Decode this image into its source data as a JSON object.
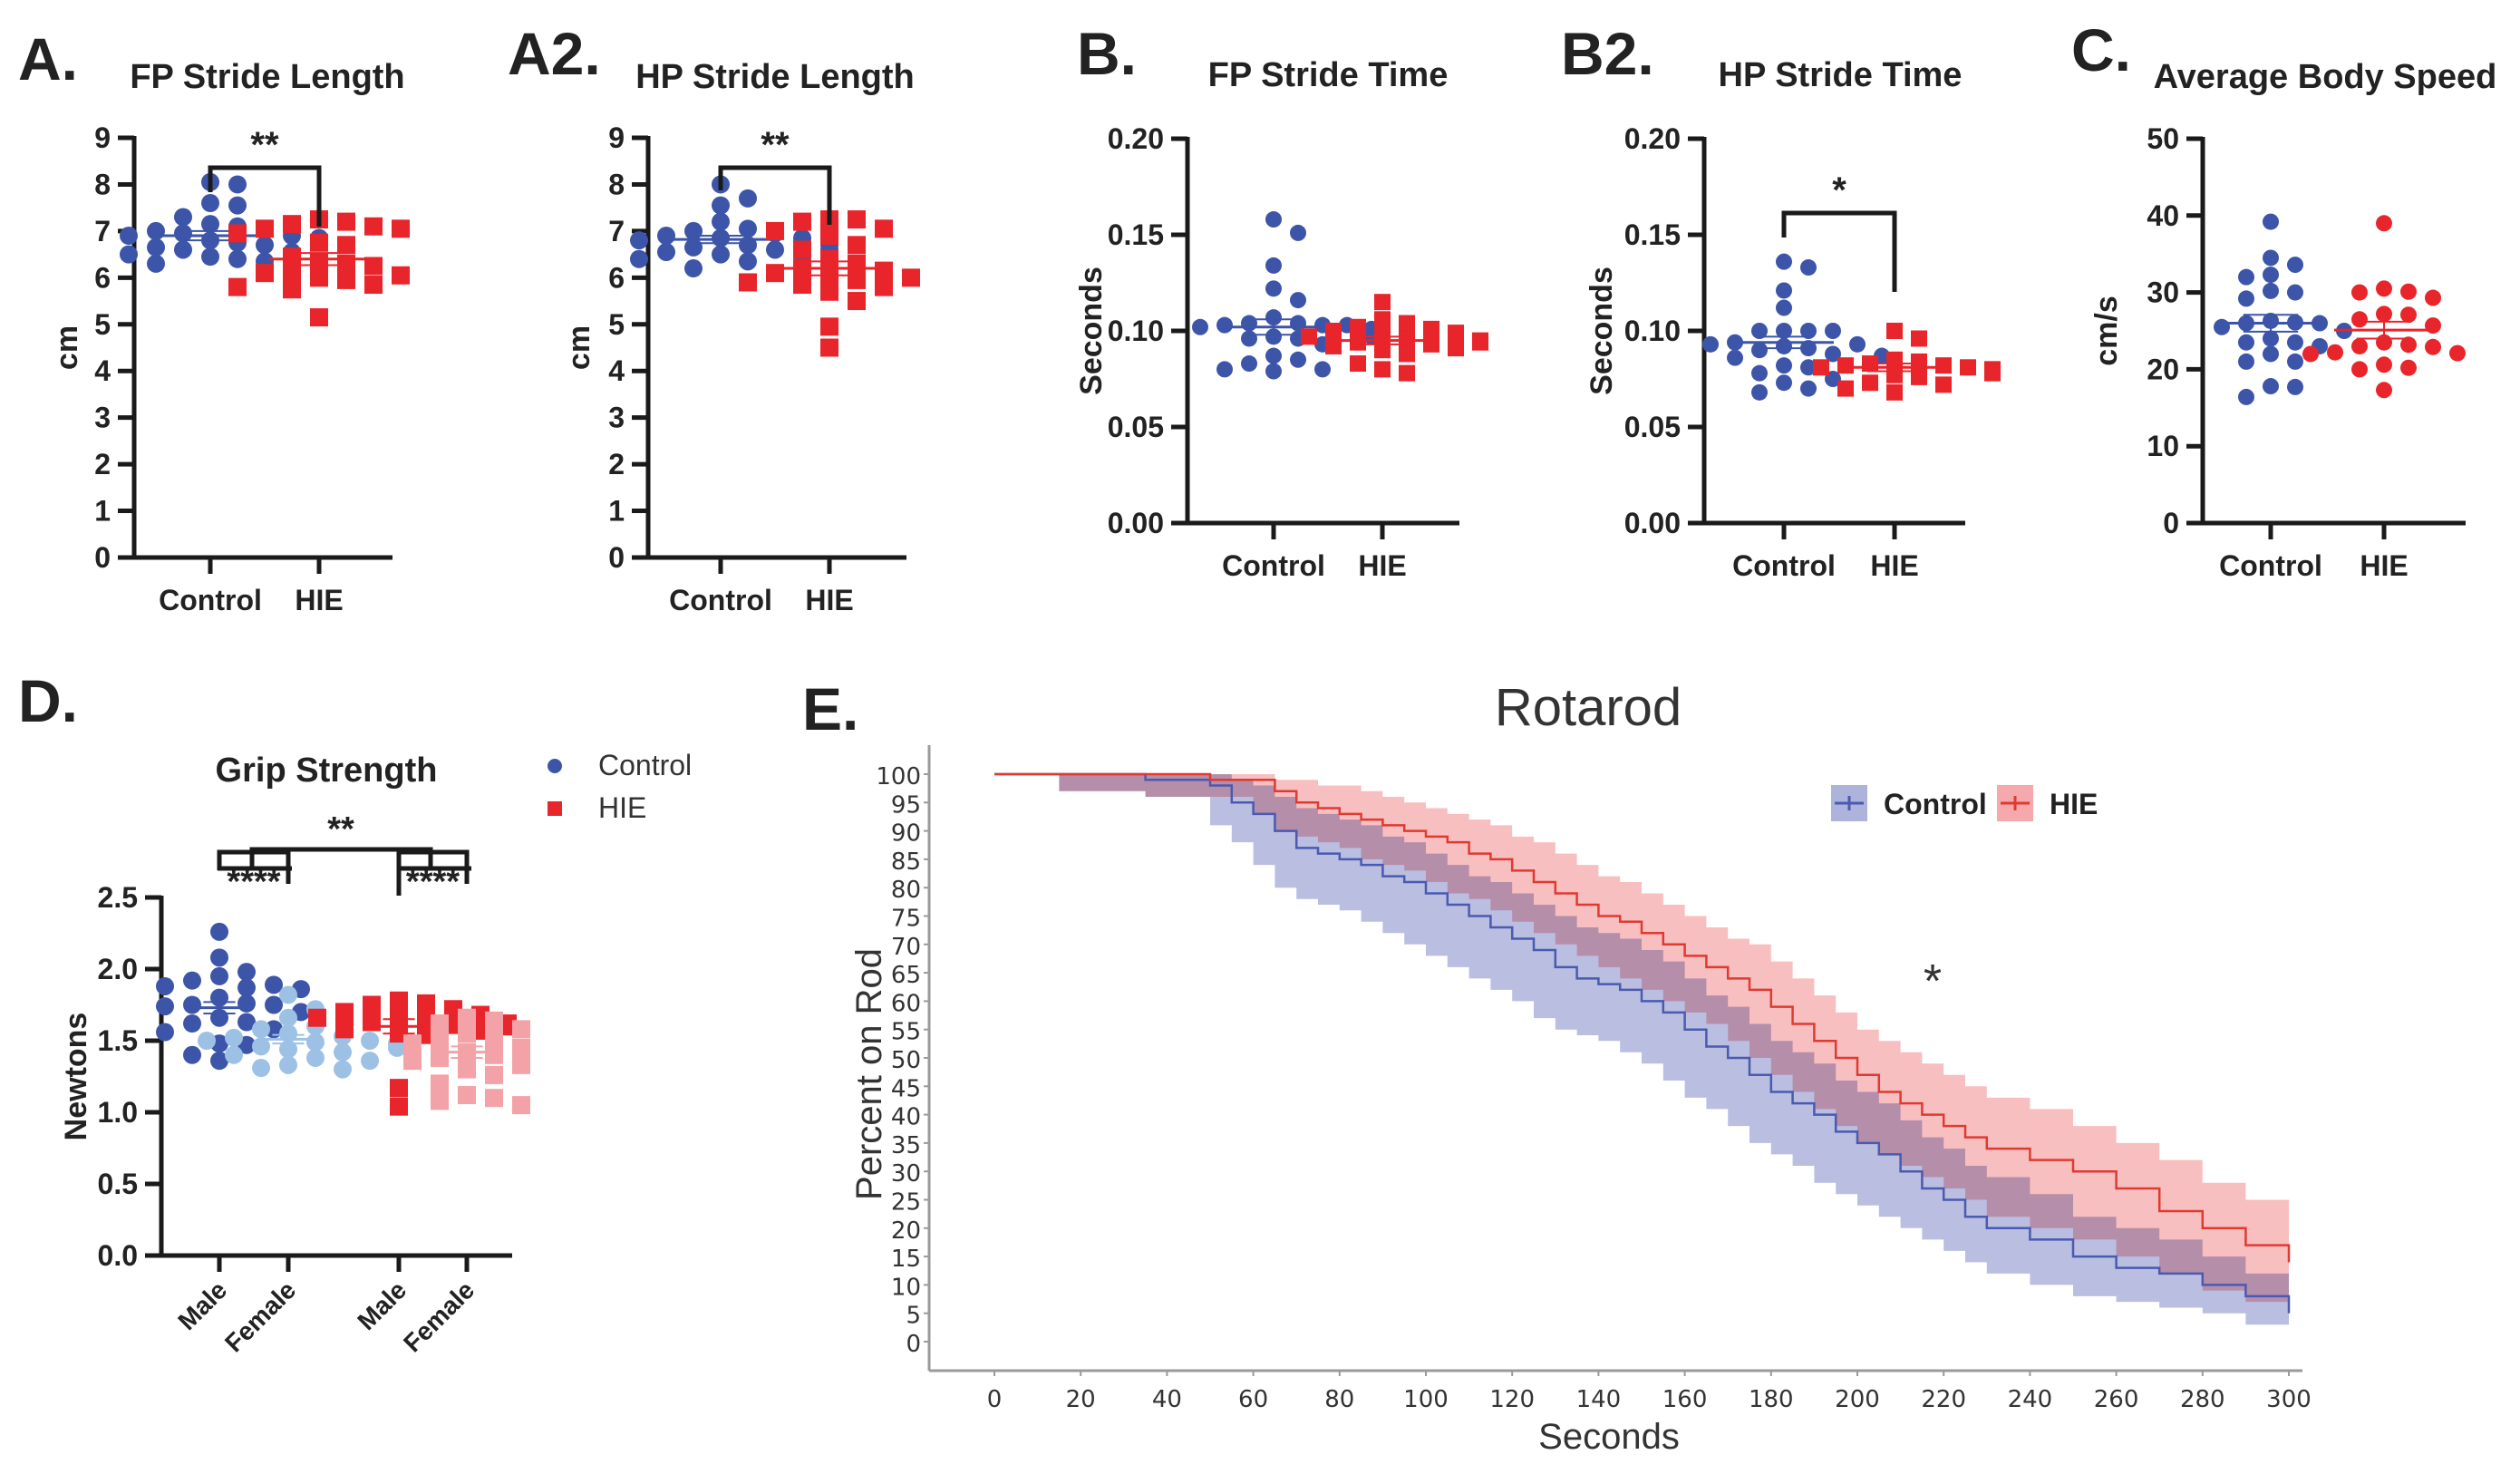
{
  "colors": {
    "control": "#3d55a8",
    "hie": "#e8252b",
    "control_female": "#9dc1e5",
    "hie_female": "#f3a3a7",
    "axis": "#1a1a1a",
    "km_control_line": "#4a5ab0",
    "km_hie_line": "#e03a30",
    "km_control_band": "#aeb3dc",
    "km_hie_band": "#f5a9ac",
    "km_overlap_band": "#cc7ab5"
  },
  "chart_data": [
    {
      "id": "A",
      "panel_label": "A.",
      "type": "scatter",
      "title": "FP Stride Length",
      "ylabel": "cm",
      "ylim": [
        0,
        9
      ],
      "yticks": [
        "0",
        "1",
        "2",
        "3",
        "4",
        "5",
        "6",
        "7",
        "8",
        "9"
      ],
      "categories": [
        "Control",
        "HIE"
      ],
      "significance": {
        "label": "**",
        "between": [
          "Control",
          "HIE"
        ]
      },
      "series": [
        {
          "name": "Control",
          "marker": "circle",
          "mean": 6.9,
          "sem": 0.1,
          "values": [
            8.05,
            8.0,
            7.6,
            7.55,
            7.3,
            7.15,
            7.1,
            7.05,
            7.0,
            6.95,
            6.9,
            6.9,
            6.85,
            6.85,
            6.8,
            6.75,
            6.7,
            6.65,
            6.6,
            6.55,
            6.5,
            6.45,
            6.4,
            6.35,
            6.3,
            6.3
          ]
        },
        {
          "name": "HIE",
          "marker": "square",
          "mean": 6.4,
          "sem": 0.13,
          "values": [
            7.25,
            7.2,
            7.15,
            7.1,
            7.05,
            7.05,
            6.95,
            6.75,
            6.7,
            6.45,
            6.35,
            6.3,
            6.25,
            6.1,
            6.1,
            6.05,
            6.0,
            5.95,
            5.85,
            5.8,
            5.75,
            5.15
          ]
        }
      ]
    },
    {
      "id": "A2",
      "panel_label": "A2.",
      "type": "scatter",
      "title": "HP Stride Length",
      "ylabel": "cm",
      "ylim": [
        0,
        9
      ],
      "yticks": [
        "0",
        "1",
        "2",
        "3",
        "4",
        "5",
        "6",
        "7",
        "8",
        "9"
      ],
      "categories": [
        "Control",
        "HIE"
      ],
      "significance": {
        "label": "**",
        "between": [
          "Control",
          "HIE"
        ]
      },
      "series": [
        {
          "name": "Control",
          "marker": "circle",
          "mean": 6.82,
          "sem": 0.08,
          "values": [
            8.0,
            7.7,
            7.55,
            7.2,
            7.05,
            7.0,
            6.95,
            6.9,
            6.85,
            6.85,
            6.8,
            6.8,
            6.75,
            6.7,
            6.7,
            6.65,
            6.6,
            6.6,
            6.55,
            6.5,
            6.45,
            6.4,
            6.35,
            6.2
          ]
        },
        {
          "name": "HIE",
          "marker": "square",
          "mean": 6.2,
          "sem": 0.15,
          "values": [
            7.25,
            7.25,
            7.2,
            7.05,
            7.0,
            6.9,
            6.7,
            6.6,
            6.4,
            6.3,
            6.2,
            6.15,
            6.1,
            6.05,
            6.0,
            5.95,
            5.9,
            5.85,
            5.8,
            5.7,
            5.5,
            4.95,
            4.5
          ]
        }
      ]
    },
    {
      "id": "B",
      "panel_label": "B.",
      "type": "scatter",
      "title": "FP Stride Time",
      "ylabel": "Seconds",
      "ylim": [
        0,
        0.2
      ],
      "yticks": [
        "0.00",
        "0.05",
        "0.10",
        "0.15",
        "0.20"
      ],
      "categories": [
        "Control",
        "HIE"
      ],
      "significance": null,
      "series": [
        {
          "name": "Control",
          "marker": "circle",
          "mean": 0.102,
          "sem": 0.004,
          "values": [
            0.158,
            0.151,
            0.134,
            0.122,
            0.116,
            0.107,
            0.104,
            0.104,
            0.103,
            0.103,
            0.103,
            0.102,
            0.101,
            0.097,
            0.097,
            0.096,
            0.096,
            0.093,
            0.087,
            0.085,
            0.083,
            0.08,
            0.08,
            0.079
          ]
        },
        {
          "name": "HIE",
          "marker": "square",
          "mean": 0.095,
          "sem": 0.002,
          "values": [
            0.115,
            0.106,
            0.104,
            0.102,
            0.101,
            0.1,
            0.099,
            0.098,
            0.097,
            0.096,
            0.095,
            0.094,
            0.094,
            0.093,
            0.092,
            0.091,
            0.09,
            0.088,
            0.083,
            0.08,
            0.078
          ]
        }
      ]
    },
    {
      "id": "B2",
      "panel_label": "B2.",
      "type": "scatter",
      "title": "HP Stride Time",
      "ylabel": "Seconds",
      "ylim": [
        0,
        0.2
      ],
      "yticks": [
        "0.00",
        "0.05",
        "0.10",
        "0.15",
        "0.20"
      ],
      "categories": [
        "Control",
        "HIE"
      ],
      "significance": {
        "label": "*",
        "between": [
          "Control",
          "HIE"
        ]
      },
      "series": [
        {
          "name": "Control",
          "marker": "circle",
          "mean": 0.094,
          "sem": 0.003,
          "values": [
            0.136,
            0.133,
            0.121,
            0.112,
            0.1,
            0.1,
            0.1,
            0.1,
            0.094,
            0.093,
            0.093,
            0.092,
            0.091,
            0.09,
            0.088,
            0.087,
            0.086,
            0.082,
            0.081,
            0.078,
            0.075,
            0.073,
            0.07,
            0.068
          ]
        },
        {
          "name": "HIE",
          "marker": "square",
          "mean": 0.081,
          "sem": 0.002,
          "values": [
            0.1,
            0.096,
            0.085,
            0.084,
            0.083,
            0.082,
            0.082,
            0.081,
            0.081,
            0.08,
            0.08,
            0.079,
            0.079,
            0.078,
            0.077,
            0.076,
            0.073,
            0.072,
            0.07,
            0.068
          ]
        }
      ]
    },
    {
      "id": "C",
      "panel_label": "C.",
      "type": "scatter",
      "title": "Average Body Speed",
      "ylabel": "cm/s",
      "ylim": [
        0,
        50
      ],
      "yticks": [
        "0",
        "10",
        "20",
        "30",
        "40",
        "50"
      ],
      "categories": [
        "Control",
        "HIE"
      ],
      "significance": null,
      "series": [
        {
          "name": "Control",
          "marker": "circle",
          "mean": 26.0,
          "sem": 1.1,
          "values": [
            39.2,
            34.5,
            33.6,
            32.3,
            32.0,
            30.2,
            30.0,
            29.2,
            26.3,
            26.1,
            26.0,
            26.0,
            25.5,
            25.0,
            24.0,
            23.5,
            23.5,
            23.0,
            22.0,
            21.0,
            21.0,
            17.8,
            17.7,
            16.4
          ]
        },
        {
          "name": "HIE",
          "marker": "circle",
          "mean": 25.1,
          "sem": 1.1,
          "values": [
            39.0,
            30.5,
            30.1,
            30.0,
            29.3,
            27.2,
            27.1,
            26.5,
            25.7,
            23.5,
            23.2,
            23.0,
            22.9,
            22.2,
            22.1,
            22.0,
            20.6,
            20.2,
            20.0,
            17.3
          ]
        }
      ]
    },
    {
      "id": "D",
      "panel_label": "D.",
      "type": "scatter",
      "title": "Grip Strength",
      "ylabel": "Newtons",
      "ylim": [
        0,
        2.5
      ],
      "yticks": [
        "0.0",
        "0.5",
        "1.0",
        "1.5",
        "2.0",
        "2.5"
      ],
      "categories": [
        "Male",
        "Female",
        "Male",
        "Female"
      ],
      "legend": [
        {
          "label": "Control",
          "marker": "circle"
        },
        {
          "label": "HIE",
          "marker": "square"
        }
      ],
      "legend_position": "top-right",
      "significance": [
        {
          "label": "****",
          "between": [
            "Control Male",
            "Control Female"
          ]
        },
        {
          "label": "****",
          "between": [
            "HIE Male",
            "HIE Female"
          ]
        },
        {
          "label": "**",
          "between": [
            "Control",
            "HIE"
          ]
        }
      ],
      "series": [
        {
          "name": "Control Male",
          "group": "Control",
          "marker": "circle",
          "mean": 1.73,
          "sem": 0.04,
          "values": [
            2.26,
            2.08,
            1.98,
            1.95,
            1.92,
            1.89,
            1.88,
            1.87,
            1.86,
            1.8,
            1.76,
            1.75,
            1.75,
            1.74,
            1.7,
            1.66,
            1.63,
            1.62,
            1.58,
            1.56,
            1.48,
            1.47,
            1.4,
            1.36
          ]
        },
        {
          "name": "Control Female",
          "group": "Control",
          "marker": "circle",
          "mean": 1.51,
          "sem": 0.03,
          "values": [
            1.82,
            1.72,
            1.66,
            1.6,
            1.58,
            1.55,
            1.53,
            1.52,
            1.5,
            1.5,
            1.49,
            1.48,
            1.46,
            1.45,
            1.44,
            1.42,
            1.4,
            1.38,
            1.36,
            1.33,
            1.31,
            1.3
          ]
        },
        {
          "name": "HIE Male",
          "group": "HIE",
          "marker": "square",
          "mean": 1.6,
          "sem": 0.05,
          "values": [
            1.78,
            1.76,
            1.75,
            1.72,
            1.7,
            1.68,
            1.67,
            1.66,
            1.65,
            1.63,
            1.62,
            1.61,
            1.6,
            1.58,
            1.57,
            1.55,
            1.54,
            1.17,
            1.04
          ]
        },
        {
          "name": "HIE Female",
          "group": "HIE",
          "marker": "square",
          "mean": 1.42,
          "sem": 0.04,
          "values": [
            1.66,
            1.64,
            1.62,
            1.58,
            1.55,
            1.52,
            1.5,
            1.48,
            1.45,
            1.42,
            1.4,
            1.38,
            1.36,
            1.33,
            1.3,
            1.26,
            1.2,
            1.12,
            1.1,
            1.08,
            1.05
          ]
        }
      ]
    },
    {
      "id": "E",
      "panel_label": "E.",
      "type": "line",
      "title": "Rotarod",
      "xlabel": "Seconds",
      "ylabel": "Percent on Rod",
      "xlim": [
        0,
        300
      ],
      "ylim": [
        0,
        100
      ],
      "xticks": [
        "0",
        "20",
        "40",
        "60",
        "80",
        "100",
        "120",
        "140",
        "160",
        "180",
        "200",
        "220",
        "240",
        "260",
        "280",
        "300"
      ],
      "yticks": [
        "0",
        "5",
        "10",
        "15",
        "20",
        "25",
        "30",
        "35",
        "40",
        "45",
        "50",
        "55",
        "60",
        "65",
        "70",
        "75",
        "80",
        "85",
        "90",
        "95",
        "100"
      ],
      "legend": [
        {
          "label": "Control"
        },
        {
          "label": "HIE"
        }
      ],
      "legend_position": "top-right",
      "annotation": "*",
      "series": [
        {
          "name": "Control",
          "x": [
            0,
            15,
            35,
            50,
            55,
            60,
            65,
            70,
            75,
            80,
            85,
            90,
            95,
            100,
            105,
            110,
            115,
            120,
            125,
            130,
            135,
            140,
            145,
            150,
            155,
            160,
            165,
            170,
            175,
            180,
            185,
            190,
            195,
            200,
            205,
            210,
            215,
            220,
            225,
            230,
            240,
            250,
            260,
            270,
            280,
            290,
            300
          ],
          "y": [
            100,
            100,
            99,
            98,
            95,
            93,
            90,
            87,
            86,
            85,
            84,
            82,
            81,
            79,
            77,
            75,
            73,
            71,
            69,
            66,
            64,
            63,
            62,
            60,
            58,
            55,
            52,
            50,
            47,
            44,
            42,
            40,
            37,
            35,
            33,
            30,
            27,
            25,
            22,
            20,
            18,
            15,
            13,
            12,
            10,
            8,
            5
          ],
          "lower": [
            100,
            100,
            97,
            96,
            91,
            88,
            84,
            80,
            78,
            77,
            76,
            74,
            72,
            70,
            68,
            66,
            64,
            62,
            60,
            57,
            55,
            54,
            53,
            51,
            49,
            46,
            43,
            41,
            38,
            35,
            33,
            31,
            28,
            26,
            24,
            22,
            20,
            18,
            16,
            14,
            12,
            10,
            8,
            7,
            6,
            5,
            3
          ],
          "upper": [
            100,
            100,
            100,
            100,
            99,
            98,
            96,
            94,
            93,
            92,
            91,
            89,
            88,
            86,
            84,
            82,
            81,
            79,
            77,
            75,
            73,
            72,
            71,
            69,
            67,
            64,
            61,
            59,
            56,
            53,
            51,
            49,
            46,
            44,
            42,
            39,
            36,
            34,
            31,
            29,
            26,
            22,
            20,
            18,
            15,
            12,
            8
          ]
        },
        {
          "name": "HIE",
          "x": [
            0,
            15,
            35,
            50,
            55,
            60,
            65,
            70,
            75,
            80,
            85,
            90,
            95,
            100,
            105,
            110,
            115,
            120,
            125,
            130,
            135,
            140,
            145,
            150,
            155,
            160,
            165,
            170,
            175,
            180,
            185,
            190,
            195,
            200,
            205,
            210,
            215,
            220,
            225,
            230,
            240,
            250,
            260,
            270,
            280,
            290,
            300
          ],
          "y": [
            100,
            100,
            100,
            99,
            99,
            99,
            97,
            95,
            94,
            93,
            92,
            91,
            90,
            89,
            88,
            86,
            85,
            83,
            81,
            79,
            77,
            75,
            74,
            72,
            70,
            68,
            66,
            64,
            62,
            59,
            56,
            53,
            50,
            47,
            44,
            42,
            40,
            38,
            36,
            34,
            32,
            30,
            27,
            23,
            20,
            17,
            14
          ],
          "lower": [
            100,
            100,
            97,
            96,
            96,
            96,
            93,
            90,
            89,
            88,
            87,
            85,
            84,
            83,
            81,
            79,
            78,
            76,
            74,
            72,
            70,
            68,
            66,
            64,
            62,
            60,
            58,
            56,
            53,
            50,
            47,
            44,
            41,
            38,
            35,
            33,
            31,
            29,
            27,
            25,
            22,
            20,
            18,
            15,
            12,
            9,
            7
          ],
          "upper": [
            100,
            100,
            100,
            100,
            100,
            100,
            99,
            99,
            98,
            98,
            97,
            96,
            95,
            94,
            93,
            92,
            91,
            89,
            88,
            86,
            84,
            82,
            81,
            79,
            77,
            75,
            73,
            71,
            70,
            67,
            64,
            61,
            58,
            55,
            53,
            51,
            49,
            47,
            45,
            43,
            41,
            38,
            35,
            32,
            28,
            25,
            24
          ]
        }
      ]
    }
  ]
}
